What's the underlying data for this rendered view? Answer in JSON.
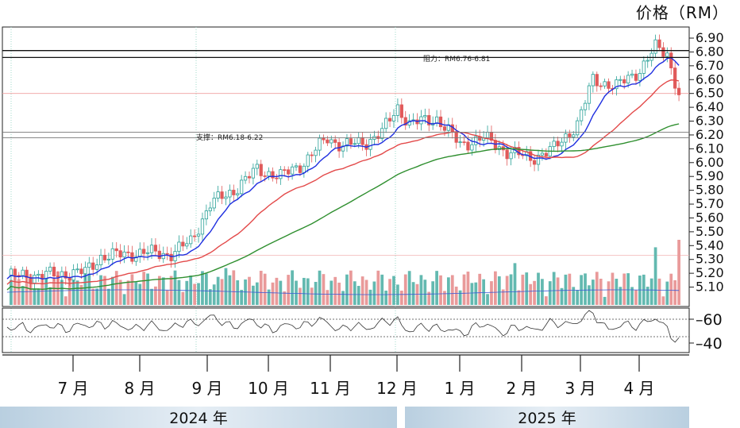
{
  "chart_data": {
    "type": "candlestick",
    "unit_label": "价格（RM）",
    "y_ticks": [
      6.9,
      6.8,
      6.7,
      6.6,
      6.5,
      6.4,
      6.3,
      6.2,
      6.1,
      6.0,
      5.9,
      5.8,
      5.7,
      5.6,
      5.5,
      5.4,
      5.3,
      5.2,
      5.1
    ],
    "y_tick_labels": [
      "6.90",
      "6.80",
      "6.70",
      "6.60",
      "6.50",
      "6.40",
      "6.30",
      "6.20",
      "6.10",
      "6.00",
      "5.90",
      "5.80",
      "5.70",
      "5.60",
      "5.50",
      "5.40",
      "5.30",
      "5.20",
      "5.10"
    ],
    "ylim": [
      5.05,
      6.95
    ],
    "rsi_ticks": [
      "60",
      "40"
    ],
    "months": [
      "7 月",
      "8 月",
      "9 月",
      "10 月",
      "11 月",
      "12 月",
      "1 月",
      "2 月",
      "3 月",
      "4 月"
    ],
    "years": [
      "2024 年",
      "2025 年"
    ],
    "annotations": {
      "resistance": "阻力：RM6.76-6.81",
      "support": "支撑：RM6.18-6.22"
    },
    "resistance_levels": [
      6.81,
      6.76
    ],
    "support_levels": [
      6.22,
      6.18
    ],
    "colors": {
      "up": "#2aa198",
      "down": "#e05a5a",
      "ma_fast": "#1f2fe0",
      "ma_mid": "#e34a4a",
      "ma_slow": "#2f8f2f",
      "volume_up": "#63b9b0",
      "volume_down": "#e99a9a"
    },
    "anchors": [
      [
        0,
        5.18
      ],
      [
        12,
        5.19
      ],
      [
        20,
        5.21
      ],
      [
        24,
        5.32
      ],
      [
        35,
        5.35
      ],
      [
        42,
        5.34
      ],
      [
        47,
        5.43
      ],
      [
        52,
        5.7
      ],
      [
        58,
        5.8
      ],
      [
        64,
        5.95
      ],
      [
        70,
        5.9
      ],
      [
        76,
        6.0
      ],
      [
        82,
        6.18
      ],
      [
        86,
        6.12
      ],
      [
        92,
        6.15
      ],
      [
        96,
        6.22
      ],
      [
        100,
        6.4
      ],
      [
        103,
        6.28
      ],
      [
        110,
        6.32
      ],
      [
        116,
        6.13
      ],
      [
        122,
        6.18
      ],
      [
        128,
        6.08
      ],
      [
        134,
        6.03
      ],
      [
        140,
        6.1
      ],
      [
        146,
        6.28
      ],
      [
        150,
        6.6
      ],
      [
        156,
        6.55
      ],
      [
        162,
        6.67
      ],
      [
        166,
        6.83
      ],
      [
        169,
        6.79
      ],
      [
        172,
        6.49
      ]
    ]
  }
}
